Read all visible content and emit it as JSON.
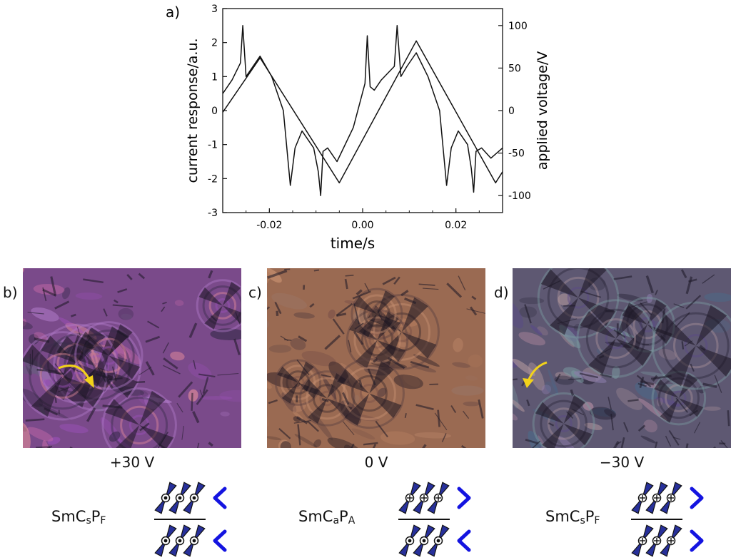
{
  "plot": {
    "label": "a)",
    "xlabel": "time/s",
    "ylabel_left": "current response/a.u.",
    "ylabel_right": "applied voltage/V",
    "xticks": [
      "-0.02",
      "0.00",
      "0.02"
    ],
    "yticks_left": [
      "3",
      "2",
      "1",
      "0",
      "-1",
      "-2",
      "-3"
    ],
    "yticks_right": [
      "100",
      "50",
      "0",
      "-50",
      "-100"
    ]
  },
  "chart_data": {
    "type": "line",
    "xlabel": "time/s",
    "ylabel": "current response/a.u.",
    "y2label": "applied voltage/V",
    "xlim": [
      -0.03,
      0.03
    ],
    "ylim": [
      -3,
      3
    ],
    "y2lim": [
      -120,
      120
    ],
    "series": [
      {
        "axis": "right",
        "x": [
          -0.03,
          -0.022,
          -0.005,
          0.0115,
          0.0285,
          0.03
        ],
        "y": [
          -2,
          62,
          -85,
          82,
          -85,
          -72
        ]
      },
      {
        "axis": "left",
        "x": [
          -0.03,
          -0.028,
          -0.0262,
          -0.0257,
          -0.025,
          -0.022,
          -0.0195,
          -0.017,
          -0.0155,
          -0.0145,
          -0.013,
          -0.0105,
          -0.0095,
          -0.009,
          -0.0085,
          -0.0075,
          -0.0055,
          -0.002,
          0.0005,
          0.001,
          0.0016,
          0.0025,
          0.004,
          0.0068,
          0.0074,
          0.0082,
          0.0095,
          0.0115,
          0.014,
          0.0165,
          0.018,
          0.019,
          0.0205,
          0.0225,
          0.0233,
          0.0238,
          0.0243,
          0.0255,
          0.0275,
          0.03
        ],
        "y": [
          0.5,
          0.9,
          1.4,
          2.5,
          1.0,
          1.6,
          1.0,
          0.0,
          -2.2,
          -1.1,
          -0.6,
          -1.1,
          -1.8,
          -2.5,
          -1.2,
          -1.1,
          -1.5,
          -0.5,
          0.8,
          2.2,
          0.7,
          0.6,
          0.9,
          1.3,
          2.5,
          1.0,
          1.3,
          1.7,
          1.0,
          0.0,
          -2.2,
          -1.1,
          -0.6,
          -1.0,
          -1.7,
          -2.4,
          -1.2,
          -1.1,
          -1.4,
          -1.1
        ]
      }
    ]
  },
  "panels": [
    {
      "label": "b)",
      "voltage": "+30 V",
      "phase_base": "SmC",
      "phase_sub1": "s",
      "phase_mid": "P",
      "phase_sub2": "F",
      "chevron_top": "left",
      "chevron_bottom": "left",
      "top_marker": "dot",
      "bottom_marker": "dot"
    },
    {
      "label": "c)",
      "voltage": "0 V",
      "phase_base": "SmC",
      "phase_sub1": "a",
      "phase_mid": "P",
      "phase_sub2": "A",
      "chevron_top": "right",
      "chevron_bottom": "left",
      "top_marker": "plus",
      "bottom_marker": "dot"
    },
    {
      "label": "d)",
      "voltage": "−30 V",
      "phase_base": "SmC",
      "phase_sub1": "s",
      "phase_mid": "P",
      "phase_sub2": "F",
      "chevron_top": "right",
      "chevron_bottom": "right",
      "top_marker": "plus",
      "bottom_marker": "plus"
    }
  ],
  "colors": {
    "photo_b": "#7a4a8a",
    "photo_c": "#9a6a52",
    "photo_d": "#5e5872",
    "arrow": "#f2d21a",
    "molecule": "#27309a",
    "chevron": "#1414e0"
  }
}
